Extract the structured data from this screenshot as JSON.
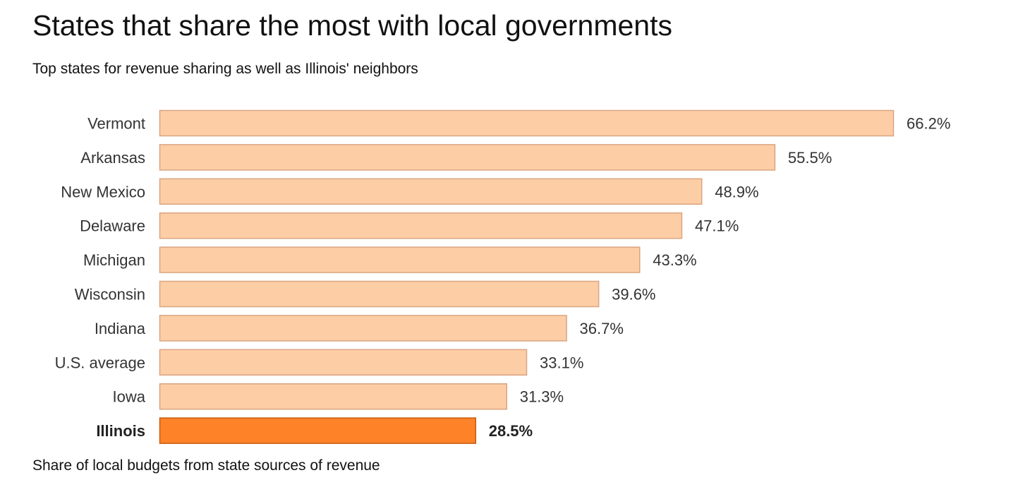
{
  "chart_data": {
    "type": "bar",
    "orientation": "horizontal",
    "title": "States that share the most with local governments",
    "subtitle": "Top states for revenue sharing as well as Illinois' neighbors",
    "xlabel": "Share of local budgets from state sources of revenue",
    "ylabel": "",
    "unit": "%",
    "xlim": [
      0,
      66.2
    ],
    "categories": [
      "Vermont",
      "Arkansas",
      "New Mexico",
      "Delaware",
      "Michigan",
      "Wisconsin",
      "Indiana",
      "U.S. average",
      "Iowa",
      "Illinois"
    ],
    "values": [
      66.2,
      55.5,
      48.9,
      47.1,
      43.3,
      39.6,
      36.7,
      33.1,
      31.3,
      28.5
    ],
    "value_labels": [
      "66.2%",
      "55.5%",
      "48.9%",
      "47.1%",
      "43.3%",
      "39.6%",
      "36.7%",
      "33.1%",
      "31.3%",
      "28.5%"
    ],
    "highlight": "Illinois",
    "colors": {
      "bar_fill": "#fdcda6",
      "bar_stroke": "#d9a581",
      "highlight_fill": "#fd8228",
      "highlight_stroke": "#c55a10"
    }
  }
}
